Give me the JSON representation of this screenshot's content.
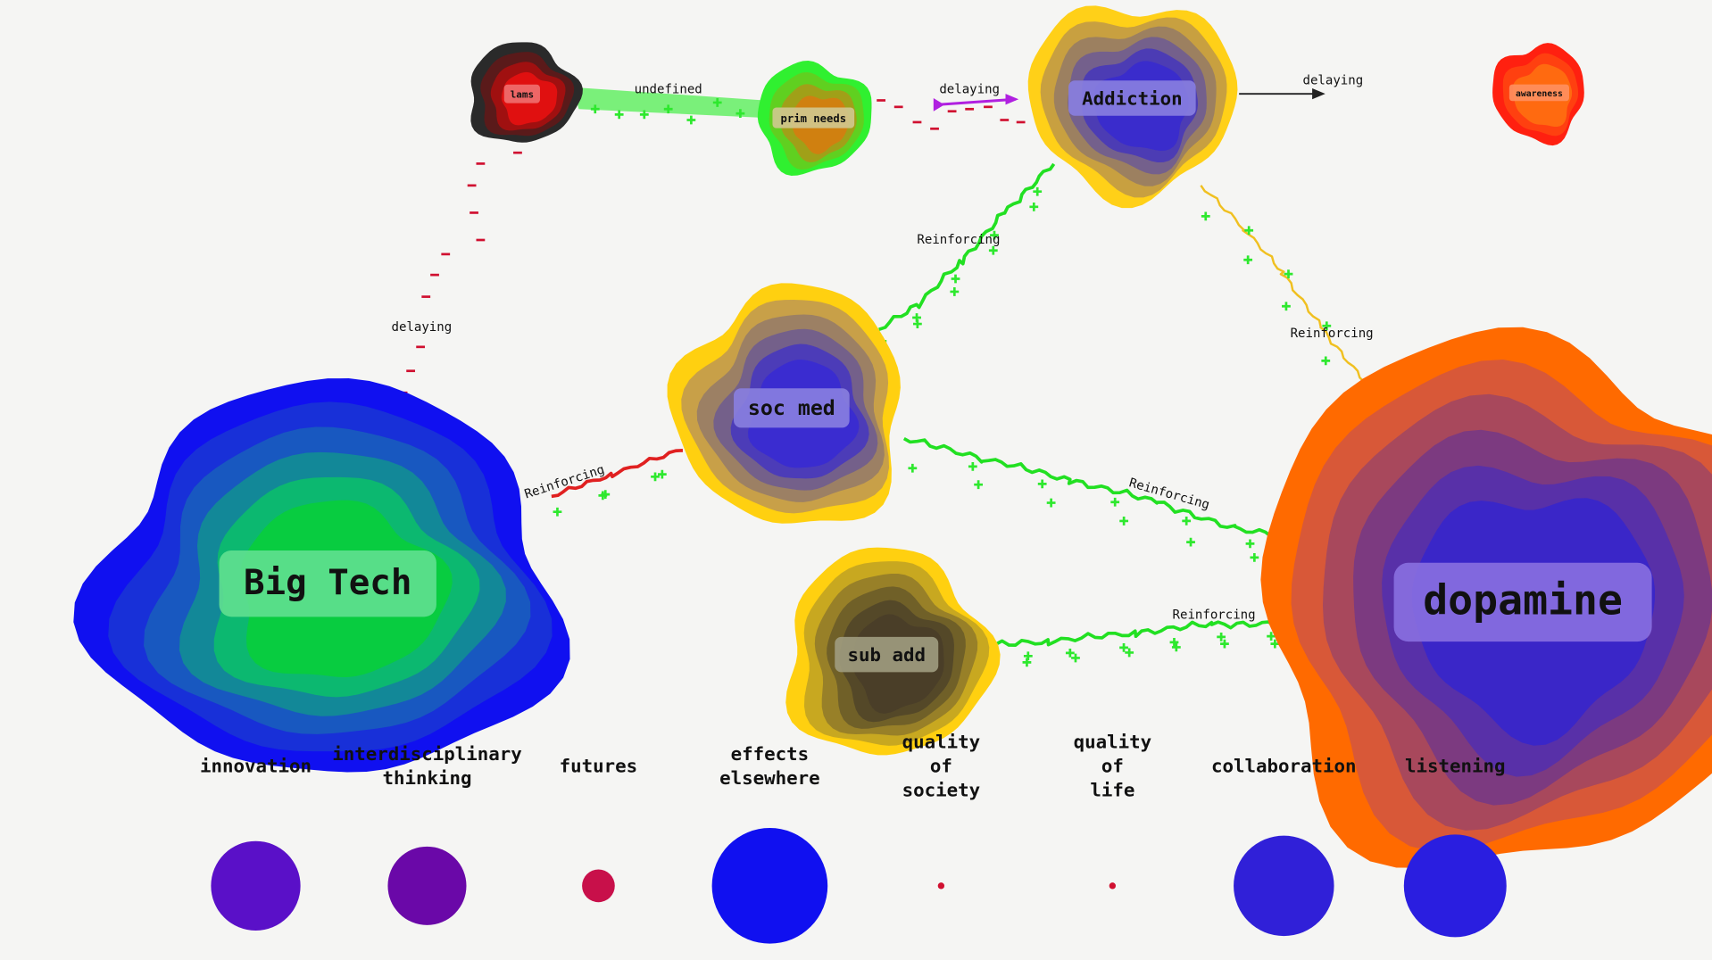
{
  "nodes": [
    {
      "label": "lams"
    },
    {
      "label": "prim needs"
    },
    {
      "label": "Addiction"
    },
    {
      "label": "awareness"
    },
    {
      "label": "soc med"
    },
    {
      "label": "Big Tech"
    },
    {
      "label": "sub add"
    },
    {
      "label": "dopamine"
    }
  ],
  "edges": [
    {
      "label": "undefined"
    },
    {
      "label": "delaying"
    },
    {
      "label": "delaying"
    },
    {
      "label": "delaying"
    },
    {
      "label": "Reinforcing"
    },
    {
      "label": "Reinforcing"
    },
    {
      "label": "Reinforcing"
    },
    {
      "label": "Reinforcing"
    },
    {
      "label": "Reinforcing"
    }
  ],
  "legend": [
    {
      "label": [
        "innovation"
      ]
    },
    {
      "label": [
        "interdisciplinary",
        "thinking"
      ]
    },
    {
      "label": [
        "futures"
      ]
    },
    {
      "label": [
        "effects",
        "elsewhere"
      ]
    },
    {
      "label": [
        "quality",
        "of",
        "society"
      ]
    },
    {
      "label": [
        "quality",
        "of",
        "life"
      ]
    },
    {
      "label": [
        "collaboration"
      ]
    },
    {
      "label": [
        "listening"
      ]
    }
  ]
}
